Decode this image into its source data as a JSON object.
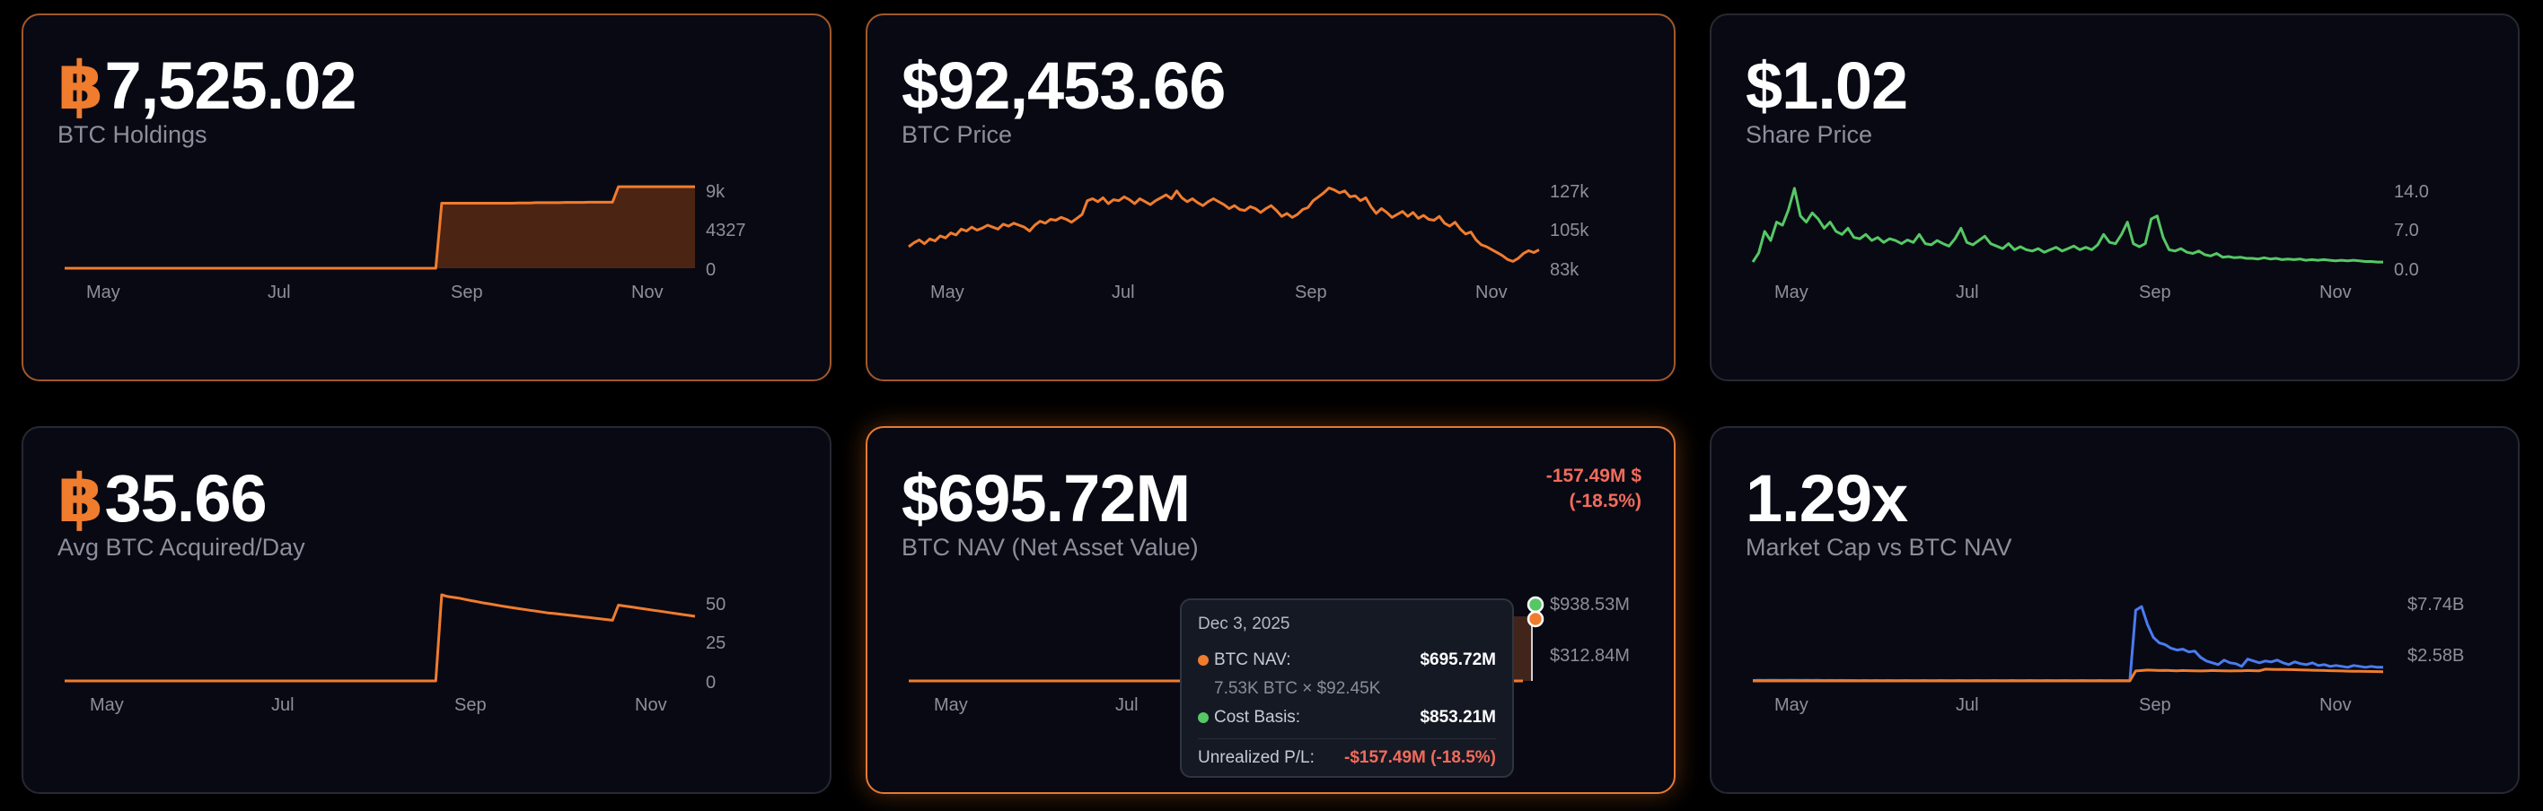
{
  "colors": {
    "accent": "#f07c2e",
    "green": "#55c865",
    "blue": "#4a7cf0",
    "negative": "#f26b5b"
  },
  "cards": [
    {
      "prefix": "฿",
      "value": "7,525.02",
      "label": "BTC Holdings",
      "chart_data": {
        "type": "area",
        "x_ticks": [
          "May",
          "Jul",
          "Sep",
          "Nov"
        ],
        "y_ticks": [
          "9k",
          "4327",
          "0"
        ],
        "ylim": [
          0,
          9000
        ],
        "series": [
          {
            "color": "#f07c2e",
            "values": [
              0,
              0,
              0,
              0,
              0,
              0,
              0,
              0,
              0,
              0,
              0,
              0,
              0,
              0,
              0,
              0,
              0,
              0,
              0,
              0,
              0,
              0,
              0,
              0,
              0,
              0,
              0,
              0,
              0,
              0,
              0,
              0,
              0,
              0,
              0,
              0,
              0,
              0,
              0,
              0,
              0,
              0,
              0,
              0,
              0,
              0,
              0,
              0,
              0,
              0,
              0,
              0,
              0,
              0,
              0,
              0,
              0,
              0,
              0,
              0,
              0,
              0,
              0,
              0,
              6800,
              6800,
              6800,
              6800,
              6800,
              6800,
              6800,
              6800,
              6800,
              6800,
              6800,
              6800,
              6800,
              6820,
              6820,
              6820,
              6850,
              6850,
              6850,
              6850,
              6850,
              6880,
              6880,
              6880,
              6880,
              6900,
              6900,
              6900,
              6900,
              6900,
              8520,
              8520,
              8520,
              8520,
              8520,
              8520,
              8520,
              8520,
              8520,
              8520,
              8520,
              8520,
              8520,
              8525
            ]
          }
        ]
      }
    },
    {
      "prefix": "",
      "value": "$92,453.66",
      "label": "BTC Price",
      "chart_data": {
        "type": "line",
        "x_ticks": [
          "May",
          "Jul",
          "Sep",
          "Nov"
        ],
        "y_ticks": [
          "127k",
          "105k",
          "83k"
        ],
        "ylim": [
          83000,
          127000
        ],
        "series": [
          {
            "color": "#f07c2e",
            "values": [
              94000,
              96000,
              97500,
              95500,
              98000,
              97000,
              99500,
              98500,
              101000,
              100000,
              103000,
              102000,
              104000,
              102500,
              103500,
              105000,
              104000,
              103000,
              105500,
              104500,
              106000,
              105000,
              104000,
              102000,
              105000,
              107000,
              106000,
              108000,
              107500,
              109000,
              108000,
              106500,
              108500,
              110500,
              117500,
              118500,
              117000,
              119000,
              116000,
              118000,
              117500,
              119500,
              118000,
              116000,
              118500,
              117000,
              115500,
              117500,
              119000,
              120500,
              118500,
              122500,
              119000,
              117000,
              118500,
              116500,
              115000,
              117000,
              118500,
              117000,
              115500,
              113500,
              115000,
              113000,
              112500,
              114500,
              113500,
              111500,
              113500,
              115000,
              112500,
              109500,
              111000,
              109000,
              110500,
              113000,
              114000,
              117500,
              119500,
              121500,
              124000,
              123000,
              121500,
              122500,
              119500,
              120000,
              117500,
              119000,
              114500,
              111000,
              113500,
              111500,
              109000,
              110500,
              112000,
              109500,
              111500,
              108500,
              110000,
              108000,
              107500,
              109500,
              106000,
              104500,
              106500,
              103000,
              100500,
              101500,
              97500,
              95000,
              94000,
              92500,
              91000,
              89500,
              87500,
              86500,
              88000,
              90500,
              92000,
              91000,
              92453
            ]
          }
        ]
      }
    },
    {
      "prefix": "",
      "value": "$1.02",
      "label": "Share Price",
      "chart_data": {
        "type": "line",
        "x_ticks": [
          "May",
          "Jul",
          "Sep",
          "Nov"
        ],
        "y_ticks": [
          "14.0",
          "7.0",
          "0.0"
        ],
        "ylim": [
          0,
          14
        ],
        "series": [
          {
            "color": "#55c865",
            "values": [
              1.0,
              2.5,
              6.0,
              4.5,
              7.5,
              7.0,
              9.5,
              13.0,
              8.5,
              7.5,
              9.0,
              8.0,
              6.5,
              7.5,
              6.0,
              5.5,
              6.5,
              5.0,
              4.8,
              5.5,
              4.5,
              5.0,
              4.2,
              4.8,
              4.5,
              4.0,
              4.6,
              4.2,
              5.5,
              4.0,
              3.8,
              4.5,
              4.0,
              3.6,
              4.8,
              6.5,
              4.2,
              3.8,
              4.5,
              5.2,
              4.0,
              3.6,
              3.2,
              4.0,
              3.0,
              3.5,
              3.0,
              2.8,
              3.2,
              2.6,
              3.0,
              3.4,
              2.8,
              3.2,
              3.6,
              3.0,
              3.4,
              3.0,
              3.8,
              5.5,
              4.2,
              4.0,
              5.5,
              7.5,
              4.0,
              3.5,
              4.0,
              8.0,
              8.5,
              5.0,
              3.0,
              2.8,
              3.2,
              2.6,
              2.4,
              2.8,
              2.2,
              2.0,
              2.4,
              1.8,
              1.9,
              1.7,
              1.8,
              1.6,
              1.6,
              1.5,
              1.7,
              1.5,
              1.6,
              1.4,
              1.5,
              1.4,
              1.5,
              1.3,
              1.4,
              1.3,
              1.4,
              1.3,
              1.2,
              1.3,
              1.2,
              1.3,
              1.2,
              1.1,
              1.1,
              1.0,
              1.0
            ]
          }
        ]
      }
    },
    {
      "prefix": "฿",
      "value": "35.66",
      "label": "Avg BTC Acquired/Day",
      "chart_data": {
        "type": "line",
        "x_ticks": [
          "May",
          "Jul",
          "Sep",
          "Nov"
        ],
        "y_ticks": [
          "50",
          "25",
          "0"
        ],
        "ylim": [
          0,
          50
        ],
        "series": [
          {
            "color": "#f07c2e",
            "values": [
              0,
              0,
              0,
              0,
              0,
              0,
              0,
              0,
              0,
              0,
              0,
              0,
              0,
              0,
              0,
              0,
              0,
              0,
              0,
              0,
              0,
              0,
              0,
              0,
              0,
              0,
              0,
              0,
              0,
              0,
              0,
              0,
              0,
              0,
              0,
              0,
              0,
              0,
              0,
              0,
              0,
              0,
              0,
              0,
              0,
              0,
              0,
              0,
              0,
              0,
              0,
              0,
              0,
              0,
              0,
              0,
              0,
              0,
              0,
              0,
              0,
              0,
              0,
              0,
              50,
              49,
              48.5,
              48,
              47.3,
              46.6,
              46,
              45.3,
              44.8,
              44.2,
              43.6,
              43,
              42.5,
              42,
              41.5,
              41,
              40.5,
              40,
              39.5,
              39.2,
              38.8,
              38.4,
              38,
              37.6,
              37.2,
              36.8,
              36.4,
              36,
              35.6,
              35.2,
              44,
              43.5,
              43,
              42.5,
              42,
              41.5,
              41,
              40.5,
              40,
              39.5,
              39,
              38.5,
              38,
              37.5
            ]
          }
        ]
      }
    },
    {
      "prefix": "",
      "value": "$695.72M",
      "label": "BTC NAV (Net Asset Value)",
      "change_line1": "-157.49M $",
      "change_line2": "(-18.5%)",
      "chart_data": {
        "type": "line",
        "x_ticks": [
          "May",
          "Jul"
        ],
        "y_ticks": [
          "$938.53M",
          "$312.84M"
        ],
        "series": [
          {
            "name": "BTC NAV",
            "color": "#f07c2e"
          },
          {
            "name": "Cost Basis",
            "color": "#55c865"
          }
        ]
      },
      "tooltip": {
        "date": "Dec 3, 2025",
        "nav_label": "BTC NAV:",
        "nav_value": "$695.72M",
        "nav_formula": "7.53K BTC × $92.45K",
        "cost_label": "Cost Basis:",
        "cost_value": "$853.21M",
        "pl_label": "Unrealized P/L:",
        "pl_value": "-$157.49M (-18.5%)"
      }
    },
    {
      "prefix": "",
      "value": "1.29x",
      "label": "Market Cap vs BTC NAV",
      "chart_data": {
        "type": "line",
        "x_ticks": [
          "May",
          "Jul",
          "Sep",
          "Nov"
        ],
        "y_ticks": [
          "$7.74B",
          "$2.58B"
        ],
        "ylim": [
          0,
          9.5
        ],
        "series": [
          {
            "color": "#4a7cf0",
            "values": [
              0.05,
              0.07,
              0.06,
              0.08,
              0.07,
              0.06,
              0.08,
              0.07,
              0.06,
              0.07,
              0.06,
              0.07,
              0.05,
              0.06,
              0.05,
              0.06,
              0.05,
              0.05,
              0.04,
              0.05,
              0.04,
              0.05,
              0.04,
              0.05,
              0.04,
              0.04,
              0.05,
              0.04,
              0.04,
              0.05,
              0.04,
              0.04,
              0.05,
              0.04,
              0.04,
              0.05,
              0.04,
              0.04,
              0.05,
              0.04,
              0.04,
              0.05,
              0.04,
              0.04,
              0.05,
              0.04,
              0.04,
              0.05,
              0.04,
              0.04,
              0.05,
              0.04,
              0.04,
              0.05,
              0.04,
              0.04,
              0.05,
              0.04,
              0.04,
              0.05,
              0.04,
              0.04,
              0.05,
              0.04,
              0.04,
              7.8,
              8.2,
              6.2,
              4.8,
              4.2,
              4.0,
              3.6,
              3.4,
              3.5,
              3.2,
              3.3,
              2.6,
              2.2,
              2.0,
              1.8,
              2.3,
              2.0,
              1.9,
              1.6,
              2.4,
              2.2,
              2.0,
              2.2,
              2.1,
              2.3,
              2.0,
              1.8,
              2.1,
              1.9,
              1.8,
              2.0,
              1.7,
              1.8,
              1.6,
              1.7,
              1.6,
              1.5,
              1.7,
              1.6,
              1.5,
              1.6,
              1.5,
              1.5
            ]
          },
          {
            "color": "#f07c2e",
            "values": [
              0,
              0,
              0,
              0,
              0,
              0,
              0,
              0,
              0,
              0,
              0,
              0,
              0,
              0,
              0,
              0,
              0,
              0,
              0,
              0,
              0,
              0,
              0,
              0,
              0,
              0,
              0,
              0,
              0,
              0,
              0,
              0,
              0,
              0,
              0,
              0,
              0,
              0,
              0,
              0,
              0,
              0,
              0,
              0,
              0,
              0,
              0,
              0,
              0,
              0,
              0,
              0,
              0,
              0,
              0,
              0,
              0,
              0,
              0,
              0,
              0,
              0,
              0,
              0,
              0,
              1.1,
              1.15,
              1.2,
              1.18,
              1.15,
              1.17,
              1.14,
              1.12,
              1.15,
              1.13,
              1.12,
              1.1,
              1.12,
              1.15,
              1.13,
              1.12,
              1.1,
              1.12,
              1.11,
              1.15,
              1.13,
              1.12,
              1.3,
              1.28,
              1.27,
              1.26,
              1.25,
              1.24,
              1.22,
              1.2,
              1.18,
              1.17,
              1.15,
              1.13,
              1.12,
              1.1,
              1.08,
              1.07,
              1.06,
              1.05,
              1.04,
              1.03,
              1.02
            ]
          }
        ]
      }
    }
  ]
}
